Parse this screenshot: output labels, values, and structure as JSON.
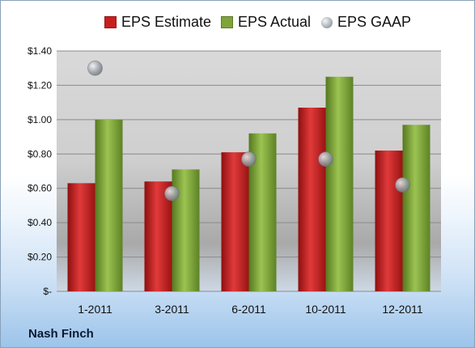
{
  "chart_data": {
    "type": "bar",
    "categories": [
      "1-2011",
      "3-2011",
      "6-2011",
      "10-2011",
      "12-2011"
    ],
    "series": [
      {
        "name": "EPS Estimate",
        "values": [
          0.63,
          0.64,
          0.81,
          1.07,
          0.82
        ],
        "color": "#c81e1e"
      },
      {
        "name": "EPS Actual",
        "values": [
          1.0,
          0.71,
          0.92,
          1.25,
          0.97
        ],
        "color": "#7fa43a"
      },
      {
        "name": "EPS GAAP",
        "values": [
          1.3,
          0.57,
          0.77,
          0.77,
          0.62
        ],
        "color": "#9aa0a8",
        "marker": "sphere"
      }
    ],
    "ylim": [
      0,
      1.4
    ],
    "yticks": [
      0,
      0.2,
      0.4,
      0.6,
      0.8,
      1.0,
      1.2,
      1.4
    ],
    "ytick_labels": [
      "$-",
      "$0.20",
      "$0.40",
      "$0.60",
      "$0.80",
      "$1.00",
      "$1.20",
      "$1.40"
    ],
    "grid": true,
    "legend_position": "top"
  },
  "footer": {
    "company": "Nash Finch"
  }
}
